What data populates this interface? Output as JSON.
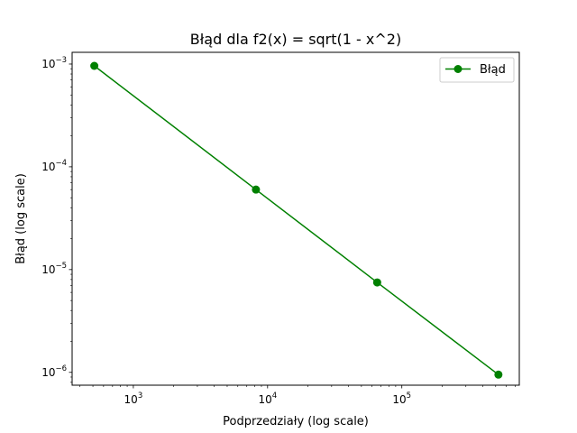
{
  "chart_data": {
    "type": "line",
    "title": "Błąd dla f2(x) = sqrt(1 - x^2)",
    "xlabel": "Podprzedziały (log scale)",
    "ylabel": "Błąd (log scale)",
    "xscale": "log",
    "yscale": "log",
    "xlim": [
      350,
      750000
    ],
    "ylim": [
      7.5e-07,
      0.0013
    ],
    "x_ticks": [
      {
        "value": 1000,
        "base": "10",
        "exp": "3"
      },
      {
        "value": 10000,
        "base": "10",
        "exp": "4"
      },
      {
        "value": 100000,
        "base": "10",
        "exp": "5"
      }
    ],
    "y_ticks": [
      {
        "value": 0.001,
        "base": "10",
        "exp": "−3"
      },
      {
        "value": 0.0001,
        "base": "10",
        "exp": "−4"
      },
      {
        "value": 1e-05,
        "base": "10",
        "exp": "−5"
      },
      {
        "value": 1e-06,
        "base": "10",
        "exp": "−6"
      }
    ],
    "series": [
      {
        "name": "Błąd",
        "color": "#008000",
        "marker": "circle",
        "x": [
          512,
          8192,
          65536,
          524288
        ],
        "y": [
          0.00096,
          6e-05,
          7.5e-06,
          9.5e-07
        ]
      }
    ],
    "legend": "top-right",
    "grid": false
  }
}
